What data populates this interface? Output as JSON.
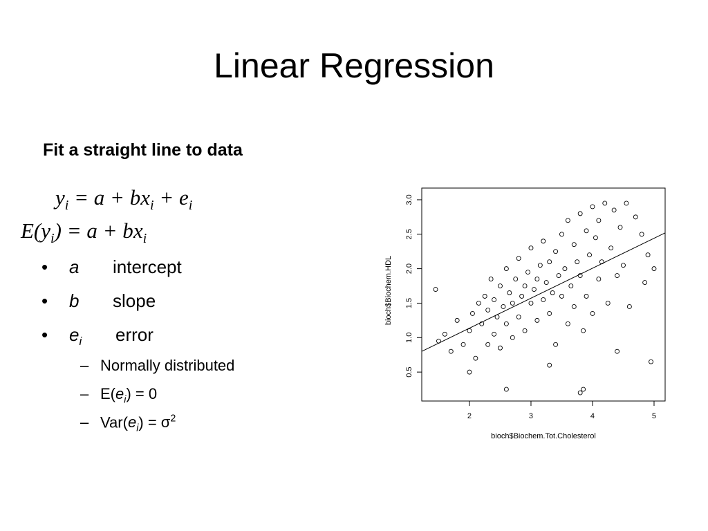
{
  "title": "Linear Regression",
  "subtitle": "Fit a straight line to data",
  "equations": [
    [
      {
        "text": "y",
        "sub": "i"
      },
      {
        "text": " = a + b"
      },
      {
        "text": "x",
        "sub": "i"
      },
      {
        "text": " + "
      },
      {
        "text": "e",
        "sub": "i"
      }
    ],
    [
      {
        "text": "E("
      },
      {
        "text": "y",
        "sub": "i"
      },
      {
        "text": ") = a + b"
      },
      {
        "text": "x",
        "sub": "i"
      }
    ]
  ],
  "bullets": [
    {
      "symbol": "a",
      "text": "intercept"
    },
    {
      "symbol": "b",
      "text": "slope"
    },
    {
      "symbol": "e",
      "symbol_sub": "i",
      "text": "error"
    }
  ],
  "sub_bullets": [
    [
      {
        "text": "Normally distributed"
      }
    ],
    [
      {
        "text": "E("
      },
      {
        "text": "e",
        "sub": "i",
        "italic": true
      },
      {
        "text": ") = 0"
      }
    ],
    [
      {
        "text": "Var("
      },
      {
        "text": "e",
        "sub": "i",
        "italic": true
      },
      {
        "text": ") = "
      },
      {
        "text": "σ",
        "sup": "2"
      }
    ]
  ],
  "chart_data": {
    "type": "scatter",
    "x_label": "bioch$Biochem.Tot.Cholesterol",
    "y_label": "bioch$Biochem.HDL",
    "xlim": [
      1.225,
      5.18
    ],
    "ylim": [
      0.08,
      3.17
    ],
    "xticks": [
      2,
      3,
      4,
      5
    ],
    "yticks": [
      0.5,
      {
        "value": 1,
        "label": "1.0"
      },
      1.5,
      {
        "value": 2,
        "label": "2.0"
      },
      2.5,
      {
        "value": 3,
        "label": "3.0"
      }
    ],
    "x": [
      1.45,
      1.5,
      1.6,
      1.7,
      1.8,
      1.9,
      2.0,
      2.05,
      2.1,
      2.15,
      2.2,
      2.25,
      2.3,
      2.3,
      2.35,
      2.4,
      2.4,
      2.45,
      2.5,
      2.5,
      2.55,
      2.6,
      2.6,
      2.65,
      2.7,
      2.7,
      2.75,
      2.8,
      2.8,
      2.85,
      2.9,
      2.9,
      2.95,
      3.0,
      3.0,
      3.05,
      3.1,
      3.1,
      3.15,
      3.2,
      3.2,
      3.25,
      3.3,
      3.3,
      3.35,
      3.4,
      3.4,
      3.45,
      3.5,
      3.5,
      3.55,
      3.6,
      3.6,
      3.65,
      3.7,
      3.7,
      3.75,
      3.8,
      3.8,
      3.85,
      3.9,
      3.9,
      3.95,
      4.0,
      4.0,
      4.05,
      4.1,
      4.1,
      4.15,
      4.2,
      4.25,
      4.3,
      4.35,
      4.4,
      4.45,
      4.5,
      4.55,
      4.6,
      4.7,
      4.8,
      4.85,
      4.9,
      4.95,
      5.0,
      2.6,
      3.8,
      3.85,
      2.0,
      3.3,
      4.4
    ],
    "series": [
      {
        "color": "#000000",
        "values": [
          1.7,
          0.95,
          1.05,
          0.8,
          1.25,
          0.9,
          1.1,
          1.35,
          0.7,
          1.5,
          1.2,
          1.6,
          0.9,
          1.4,
          1.85,
          1.05,
          1.55,
          1.3,
          1.75,
          0.85,
          1.45,
          1.2,
          2.0,
          1.65,
          1.0,
          1.5,
          1.85,
          1.3,
          2.15,
          1.6,
          1.1,
          1.75,
          1.95,
          1.5,
          2.3,
          1.7,
          1.25,
          1.85,
          2.05,
          1.55,
          2.4,
          1.8,
          1.35,
          2.1,
          1.65,
          0.9,
          2.25,
          1.9,
          1.6,
          2.5,
          2.0,
          1.2,
          2.7,
          1.75,
          2.35,
          1.45,
          2.1,
          1.9,
          2.8,
          1.1,
          2.55,
          1.6,
          2.2,
          2.9,
          1.35,
          2.45,
          1.85,
          2.7,
          2.1,
          2.95,
          1.5,
          2.3,
          2.85,
          1.9,
          2.6,
          2.05,
          2.95,
          1.45,
          2.75,
          2.5,
          1.8,
          2.2,
          0.65,
          2.0,
          0.25,
          0.2,
          0.25,
          0.5,
          0.6,
          0.8
        ]
      }
    ],
    "fit_line": {
      "color": "#000000",
      "x": [
        1.225,
        5.18
      ],
      "y": [
        0.8,
        2.52
      ]
    }
  }
}
